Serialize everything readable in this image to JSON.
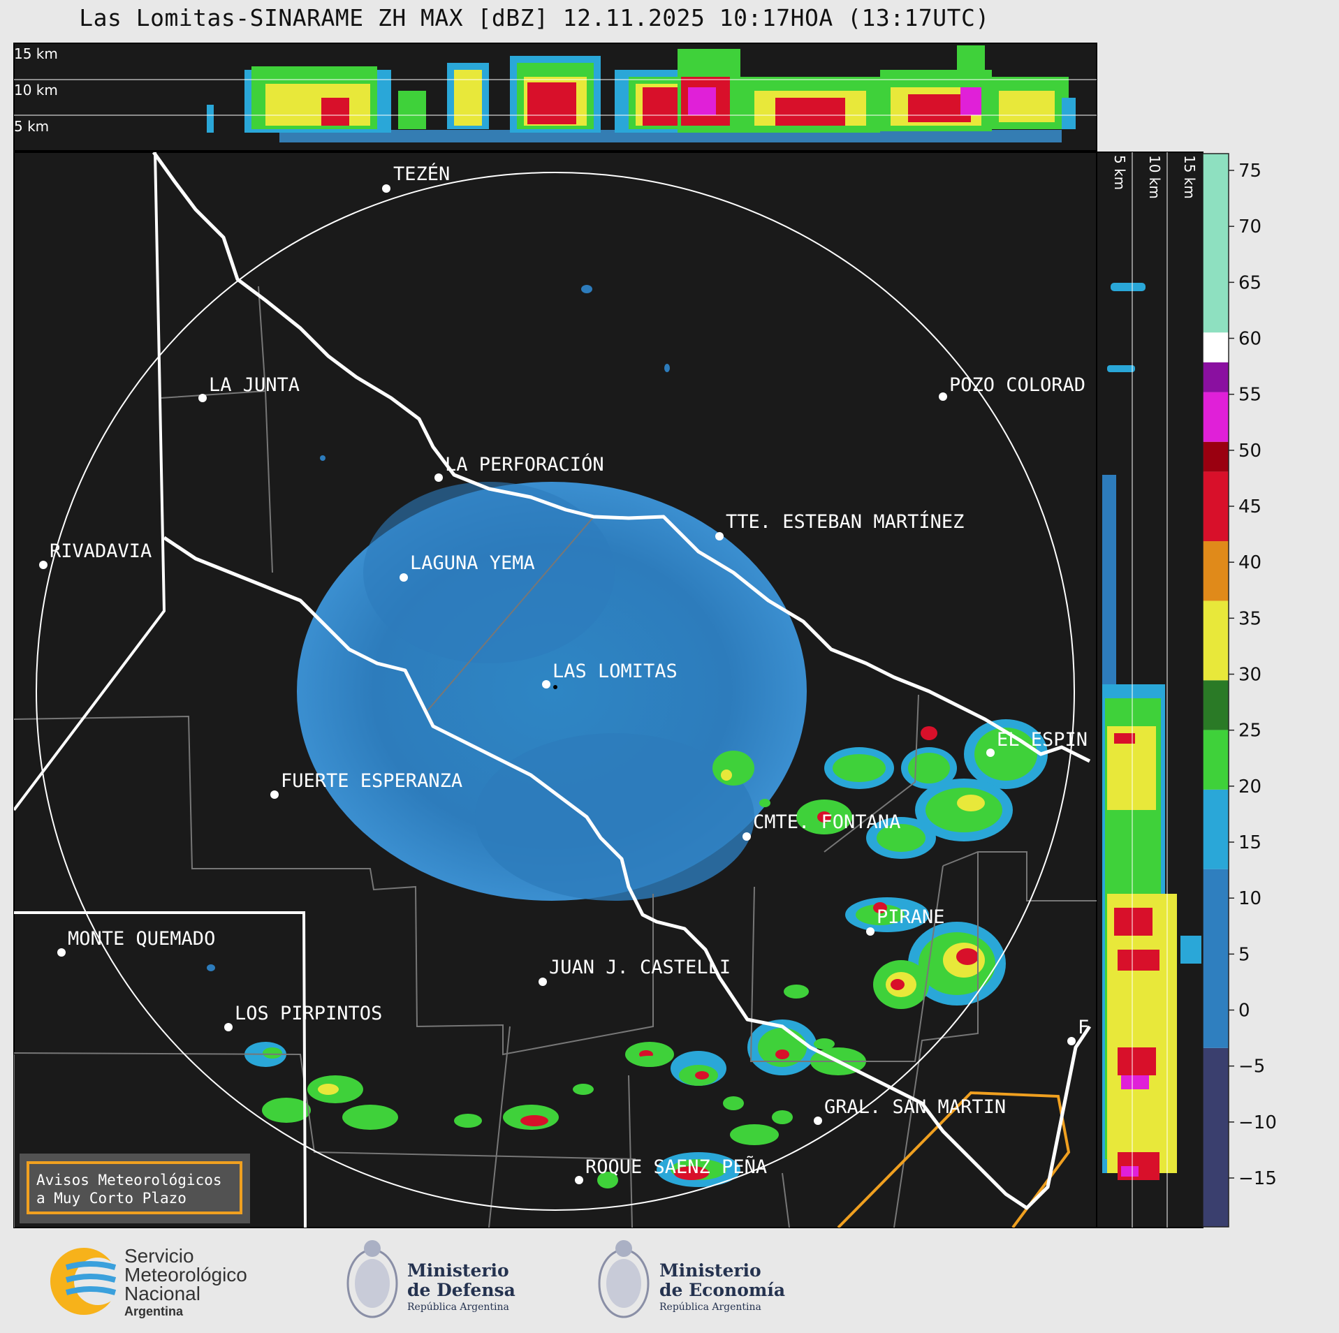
{
  "title": "Las Lomitas-SINARAME ZH MAX [dBZ] 12.11.2025 10:17HOA (13:17UTC)",
  "top_panel": {
    "height_labels": [
      "15 km",
      "10 km",
      "5 km"
    ]
  },
  "side_panel": {
    "height_labels": [
      "5 km",
      "10 km",
      "15 km"
    ]
  },
  "colorbar": {
    "unit": "dBZ",
    "ticks": [
      "75",
      "70",
      "65",
      "60",
      "55",
      "50",
      "45",
      "40",
      "35",
      "30",
      "25",
      "20",
      "15",
      "10",
      "5",
      "0",
      "−5",
      "−10",
      "−15"
    ],
    "colors": {
      "very_low": "#3a3f6e",
      "low": "#2f7fbf",
      "blue": "#2aa7d8",
      "green": "#3fd13a",
      "dark_green": "#2a7a26",
      "yellow": "#e8e83a",
      "orange": "#e08a1a",
      "red": "#d8102a",
      "dark_red": "#9a0010",
      "magenta": "#e020d8",
      "purple": "#8a10a0",
      "white": "#ffffff",
      "teal": "#8ee0c0"
    }
  },
  "map": {
    "background": "#1a1a1a",
    "cities": [
      {
        "name": "TEZÉN"
      },
      {
        "name": "LA JUNTA"
      },
      {
        "name": "POZO COLORAD"
      },
      {
        "name": "LA PERFORACIÓN"
      },
      {
        "name": "TTE. ESTEBAN MARTÍNEZ"
      },
      {
        "name": "RIVADAVIA"
      },
      {
        "name": "LAGUNA YEMA"
      },
      {
        "name": "LAS LOMITAS"
      },
      {
        "name": "EL ESPIN"
      },
      {
        "name": "FUERTE ESPERANZA"
      },
      {
        "name": "CMTE. FONTANA"
      },
      {
        "name": "PIRANE"
      },
      {
        "name": "MONTE QUEMADO"
      },
      {
        "name": "JUAN J. CASTELLI"
      },
      {
        "name": "LOS PIRPINTOS"
      },
      {
        "name": "GRAL. SAN MARTIN"
      },
      {
        "name": "ROQUE SAENZ PEÑA"
      },
      {
        "name": "F"
      }
    ]
  },
  "notice": {
    "line1": "Avisos Meteorológicos",
    "line2": "a Muy Corto Plazo"
  },
  "logos": {
    "smn_line1": "Servicio",
    "smn_line2": "Meteorológico",
    "smn_line3": "Nacional",
    "smn_line4": "Argentina",
    "defensa_line1": "Ministerio",
    "defensa_line2": "de Defensa",
    "defensa_line3": "República Argentina",
    "economia_line1": "Ministerio",
    "economia_line2": "de Economía",
    "economia_line3": "República Argentina"
  }
}
